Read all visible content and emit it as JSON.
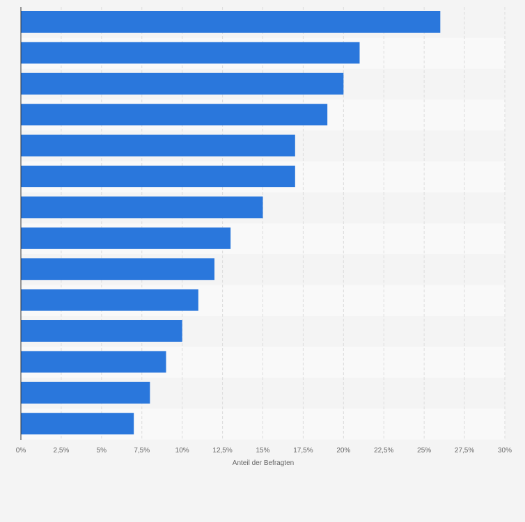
{
  "chart_data": {
    "type": "bar",
    "orientation": "horizontal",
    "title": "",
    "categories": [
      "",
      "",
      "",
      "",
      "",
      "",
      "",
      "",
      "",
      "",
      "",
      "",
      "",
      ""
    ],
    "values": [
      26,
      21,
      20,
      19,
      17,
      17,
      15,
      13,
      12,
      11,
      10,
      9,
      8,
      7
    ],
    "xlabel": "Anteil der Befragten",
    "ylabel": "",
    "xlim": [
      0,
      30
    ],
    "xticks": [
      0,
      2.5,
      5,
      7.5,
      10,
      12.5,
      15,
      17.5,
      20,
      22.5,
      25,
      27.5,
      30
    ],
    "xtick_labels": [
      "0%",
      "2,5%",
      "5%",
      "7,5%",
      "10%",
      "12,5%",
      "15%",
      "17,5%",
      "20%",
      "22,5%",
      "25%",
      "27,5%",
      "30%"
    ],
    "grid": true,
    "bar_color": "#2a77dc"
  }
}
